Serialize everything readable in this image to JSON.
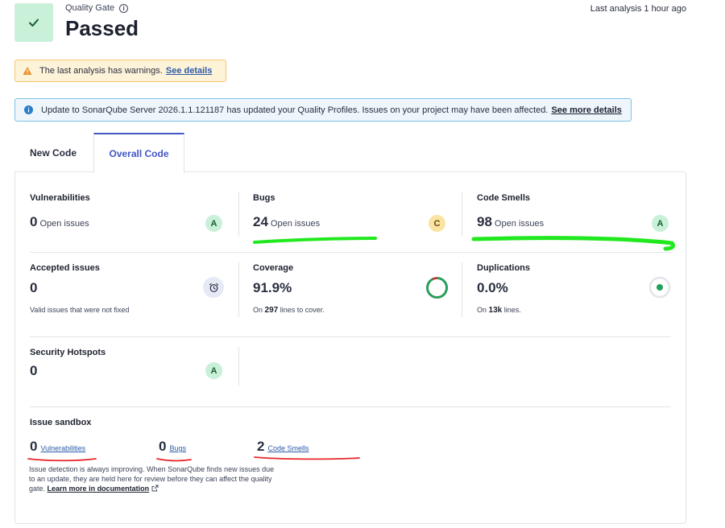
{
  "quality_gate": {
    "label": "Quality Gate",
    "status": "Passed",
    "last_analysis": "Last analysis 1 hour ago"
  },
  "warning_banner": {
    "text": "The last analysis has warnings.",
    "link": "See details"
  },
  "info_banner": {
    "text": "Update to SonarQube Server 2026.1.1.121187 has updated your Quality Profiles. Issues on your project may have been affected.",
    "link": "See more details"
  },
  "tabs": [
    {
      "label": "New Code",
      "active": false
    },
    {
      "label": "Overall Code",
      "active": true
    }
  ],
  "metrics": {
    "vulnerabilities": {
      "title": "Vulnerabilities",
      "value": "0",
      "sub": "Open issues",
      "grade": "A"
    },
    "bugs": {
      "title": "Bugs",
      "value": "24",
      "sub": "Open issues",
      "grade": "C"
    },
    "code_smells": {
      "title": "Code Smells",
      "value": "98",
      "sub": "Open issues",
      "grade": "A"
    },
    "accepted": {
      "title": "Accepted issues",
      "value": "0",
      "note": "Valid issues that were not fixed"
    },
    "coverage": {
      "title": "Coverage",
      "value": "91.9%",
      "note_prefix": "On",
      "note_num": "297",
      "note_suffix": "lines to cover.",
      "ratio": 0.919
    },
    "duplications": {
      "title": "Duplications",
      "value": "0.0%",
      "note_prefix": "On",
      "note_num": "13k",
      "note_suffix": "lines."
    },
    "hotspots": {
      "title": "Security Hotspots",
      "value": "0",
      "grade": "A"
    }
  },
  "sandbox": {
    "title": "Issue sandbox",
    "vulnerabilities": {
      "value": "0",
      "label": "Vulnerabilities"
    },
    "bugs": {
      "value": "0",
      "label": "Bugs"
    },
    "code_smells": {
      "value": "2",
      "label": "Code Smells"
    },
    "note": "Issue detection is always improving. When SonarQube finds new issues due to an update, they are held here for review before they can affect the quality gate.",
    "link": "Learn more in documentation"
  },
  "icons": {
    "check": "check-icon",
    "info": "info-icon",
    "warning": "warning-icon",
    "accepted": "alarm-clock-icon",
    "external": "external-link-icon"
  },
  "colors": {
    "pass_bg": "#c9f0d8",
    "accent": "#4256c5",
    "grade_a": "#c9f0d8",
    "grade_c": "#fbe3a3",
    "coverage_green": "#1fa35a",
    "coverage_red": "#d02f3a"
  }
}
